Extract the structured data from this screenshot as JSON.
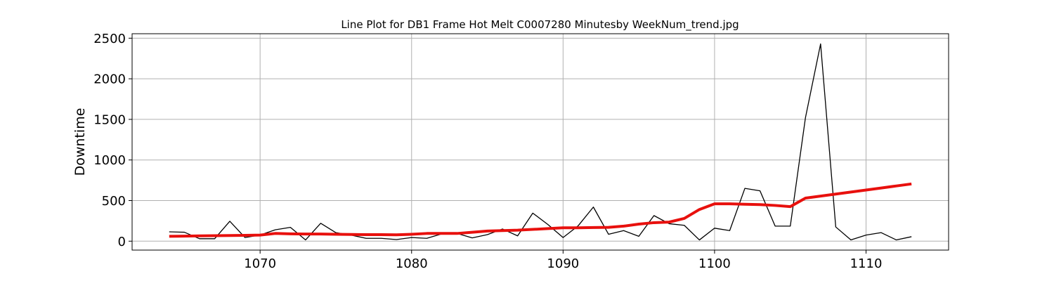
{
  "chart_data": {
    "type": "line",
    "title": "Line Plot for DB1 Frame Hot Melt C0007280 Minutesby WeekNum_trend.jpg",
    "xlabel": "",
    "ylabel": "Downtime",
    "xlim": [
      1061.55,
      1115.45
    ],
    "ylim": [
      -110,
      2555
    ],
    "xticks": [
      1070,
      1080,
      1090,
      1100,
      1110
    ],
    "yticks": [
      0,
      500,
      1000,
      1500,
      2000,
      2500
    ],
    "grid": true,
    "legend": "none",
    "x": [
      1064,
      1065,
      1066,
      1067,
      1068,
      1069,
      1070,
      1071,
      1072,
      1073,
      1074,
      1075,
      1076,
      1077,
      1078,
      1079,
      1080,
      1081,
      1082,
      1083,
      1084,
      1085,
      1086,
      1087,
      1088,
      1089,
      1090,
      1091,
      1092,
      1093,
      1094,
      1095,
      1096,
      1097,
      1098,
      1099,
      1100,
      1101,
      1102,
      1103,
      1104,
      1105,
      1106,
      1107,
      1108,
      1109,
      1110,
      1111,
      1112,
      1113
    ],
    "series": [
      {
        "color": "#000000",
        "width": 1.3,
        "values": [
          115,
          110,
          30,
          30,
          245,
          45,
          75,
          140,
          170,
          15,
          220,
          105,
          75,
          35,
          35,
          20,
          45,
          35,
          90,
          95,
          40,
          80,
          150,
          65,
          345,
          205,
          45,
          190,
          420,
          85,
          130,
          60,
          315,
          215,
          195,
          15,
          160,
          130,
          650,
          620,
          185,
          185,
          1520,
          2430,
          175,
          15,
          75,
          105,
          15,
          55
        ]
      },
      {
        "color": "#e8100d",
        "width": 4,
        "values": [
          60,
          62,
          65,
          67,
          70,
          72,
          75,
          95,
          90,
          88,
          88,
          85,
          82,
          80,
          80,
          78,
          85,
          95,
          95,
          95,
          110,
          125,
          130,
          135,
          145,
          155,
          165,
          165,
          168,
          170,
          185,
          210,
          228,
          235,
          280,
          390,
          460,
          460,
          455,
          450,
          440,
          425,
          530,
          555,
          580,
          605,
          630,
          655,
          680,
          705
        ]
      }
    ]
  }
}
